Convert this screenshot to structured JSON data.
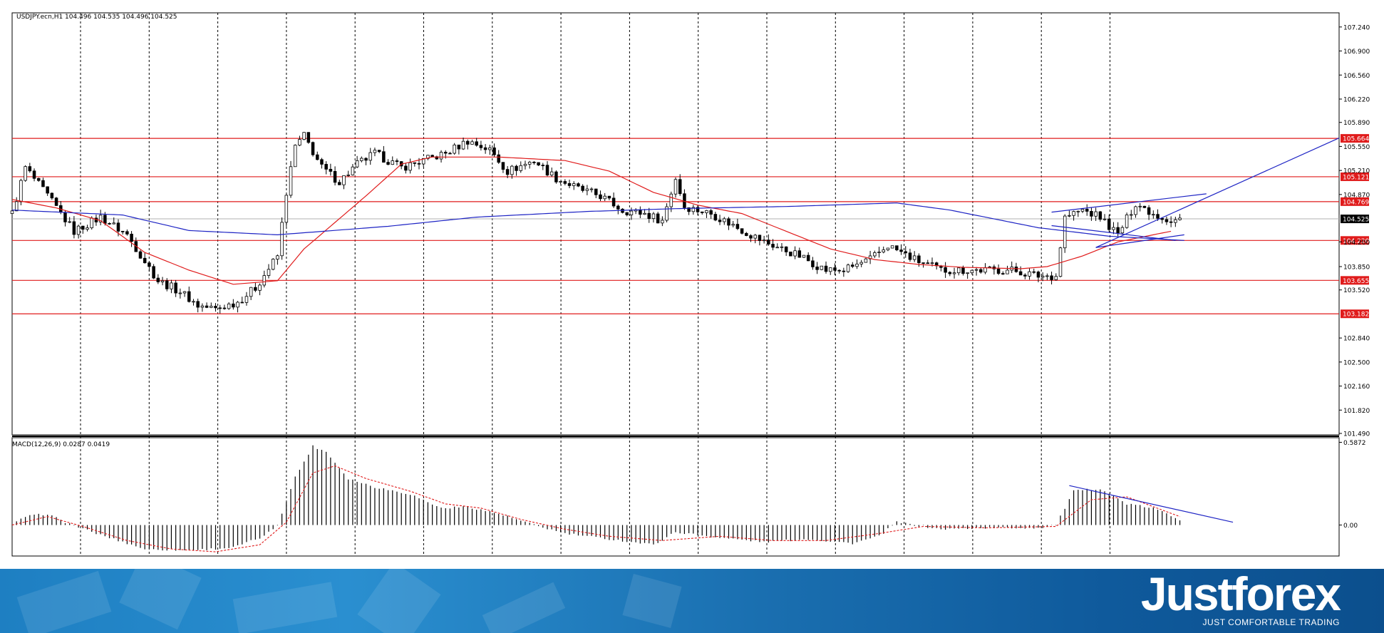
{
  "chart_data": [
    {
      "type": "line",
      "title": "USDJPY.ecn,H1  104.496 104.535 104.496 104.525",
      "price_ticks": [
        "107.240",
        "106.900",
        "106.560",
        "106.220",
        "105.890",
        "105.550",
        "105.210",
        "104.870",
        "104.200",
        "103.850",
        "103.520",
        "102.840",
        "102.500",
        "102.160",
        "101.820",
        "101.490"
      ],
      "ylim": [
        101.47,
        107.44
      ],
      "x_count": 300,
      "levels": [
        {
          "label": "105.664",
          "value": 105.664
        },
        {
          "label": "105.121",
          "value": 105.121
        },
        {
          "label": "104.769",
          "value": 104.769
        },
        {
          "label": "104.220",
          "value": 104.22
        },
        {
          "label": "103.655",
          "value": 103.655
        },
        {
          "label": "103.182",
          "value": 103.182
        }
      ],
      "current_price": {
        "label": "104.525",
        "value": 104.525
      },
      "price_keypoints": [
        [
          0,
          104.6
        ],
        [
          3,
          105.25
        ],
        [
          8,
          104.85
        ],
        [
          14,
          104.35
        ],
        [
          20,
          104.55
        ],
        [
          26,
          104.3
        ],
        [
          33,
          103.65
        ],
        [
          38,
          103.5
        ],
        [
          42,
          103.3
        ],
        [
          46,
          103.25
        ],
        [
          51,
          103.35
        ],
        [
          55,
          103.55
        ],
        [
          60,
          104.0
        ],
        [
          62,
          104.9
        ],
        [
          64,
          105.55
        ],
        [
          66,
          105.7
        ],
        [
          70,
          105.25
        ],
        [
          74,
          105.05
        ],
        [
          78,
          105.3
        ],
        [
          82,
          105.45
        ],
        [
          88,
          105.25
        ],
        [
          93,
          105.35
        ],
        [
          98,
          105.45
        ],
        [
          103,
          105.63
        ],
        [
          108,
          105.5
        ],
        [
          112,
          105.2
        ],
        [
          118,
          105.35
        ],
        [
          123,
          105.1
        ],
        [
          128,
          104.95
        ],
        [
          133,
          104.85
        ],
        [
          138,
          104.65
        ],
        [
          143,
          104.6
        ],
        [
          147,
          104.5
        ],
        [
          150,
          105.1
        ],
        [
          152,
          104.7
        ],
        [
          158,
          104.6
        ],
        [
          164,
          104.4
        ],
        [
          170,
          104.2
        ],
        [
          178,
          104.0
        ],
        [
          184,
          103.8
        ],
        [
          188,
          103.8
        ],
        [
          194,
          103.95
        ],
        [
          198,
          104.15
        ],
        [
          204,
          103.95
        ],
        [
          210,
          103.8
        ],
        [
          218,
          103.8
        ],
        [
          226,
          103.8
        ],
        [
          232,
          103.72
        ],
        [
          236,
          103.72
        ],
        [
          238,
          104.55
        ],
        [
          242,
          104.65
        ],
        [
          246,
          104.55
        ],
        [
          250,
          104.3
        ],
        [
          254,
          104.75
        ],
        [
          258,
          104.6
        ],
        [
          262,
          104.5
        ],
        [
          264,
          104.525
        ]
      ],
      "ma_fast_keypoints": [
        [
          0,
          104.8
        ],
        [
          10,
          104.68
        ],
        [
          20,
          104.5
        ],
        [
          30,
          104.05
        ],
        [
          40,
          103.8
        ],
        [
          50,
          103.6
        ],
        [
          60,
          103.65
        ],
        [
          66,
          104.1
        ],
        [
          80,
          104.85
        ],
        [
          88,
          105.3
        ],
        [
          95,
          105.4
        ],
        [
          110,
          105.4
        ],
        [
          125,
          105.35
        ],
        [
          135,
          105.2
        ],
        [
          145,
          104.9
        ],
        [
          155,
          104.72
        ],
        [
          165,
          104.6
        ],
        [
          175,
          104.35
        ],
        [
          185,
          104.1
        ],
        [
          195,
          103.95
        ],
        [
          205,
          103.88
        ],
        [
          215,
          103.84
        ],
        [
          228,
          103.82
        ],
        [
          234,
          103.85
        ],
        [
          242,
          104.0
        ],
        [
          250,
          104.2
        ],
        [
          262,
          104.35
        ]
      ],
      "ma_slow_keypoints": [
        [
          0,
          104.65
        ],
        [
          25,
          104.58
        ],
        [
          40,
          104.36
        ],
        [
          60,
          104.3
        ],
        [
          85,
          104.42
        ],
        [
          105,
          104.55
        ],
        [
          130,
          104.63
        ],
        [
          150,
          104.67
        ],
        [
          175,
          104.7
        ],
        [
          200,
          104.75
        ],
        [
          212,
          104.65
        ],
        [
          232,
          104.4
        ],
        [
          248,
          104.28
        ],
        [
          265,
          104.22
        ]
      ],
      "trendlines": [
        {
          "from": [
            235,
            104.62
          ],
          "to": [
            270,
            104.88
          ]
        },
        {
          "from": [
            235,
            104.43
          ],
          "to": [
            263,
            104.22
          ]
        },
        {
          "from": [
            245,
            104.12
          ],
          "to": [
            330,
            105.67
          ]
        },
        {
          "from": [
            245,
            104.12
          ],
          "to": [
            265,
            104.3
          ]
        }
      ]
    },
    {
      "type": "bar",
      "title": "MACD(12,26,9) 0.0287 0.0419",
      "y_ticks": [
        "0.5872",
        "0.00"
      ],
      "ylim": [
        -0.22,
        0.62
      ],
      "x_count": 300,
      "histogram_keypoints": [
        [
          0,
          0.0
        ],
        [
          3,
          0.06
        ],
        [
          8,
          0.08
        ],
        [
          12,
          0.02
        ],
        [
          18,
          -0.05
        ],
        [
          25,
          -0.12
        ],
        [
          30,
          -0.17
        ],
        [
          40,
          -0.18
        ],
        [
          50,
          -0.16
        ],
        [
          57,
          -0.08
        ],
        [
          60,
          0.0
        ],
        [
          64,
          0.34
        ],
        [
          68,
          0.56
        ],
        [
          71,
          0.52
        ],
        [
          76,
          0.33
        ],
        [
          82,
          0.27
        ],
        [
          90,
          0.22
        ],
        [
          97,
          0.12
        ],
        [
          103,
          0.13
        ],
        [
          110,
          0.08
        ],
        [
          118,
          0.0
        ],
        [
          125,
          -0.06
        ],
        [
          135,
          -0.1
        ],
        [
          145,
          -0.14
        ],
        [
          150,
          -0.05
        ],
        [
          160,
          -0.09
        ],
        [
          170,
          -0.12
        ],
        [
          180,
          -0.1
        ],
        [
          190,
          -0.13
        ],
        [
          196,
          -0.08
        ],
        [
          200,
          0.02
        ],
        [
          210,
          -0.03
        ],
        [
          220,
          -0.02
        ],
        [
          232,
          -0.02
        ],
        [
          236,
          0.0
        ],
        [
          240,
          0.24
        ],
        [
          246,
          0.26
        ],
        [
          252,
          0.15
        ],
        [
          258,
          0.12
        ],
        [
          264,
          0.04
        ]
      ],
      "signal_keypoints": [
        [
          0,
          0.0
        ],
        [
          8,
          0.06
        ],
        [
          16,
          -0.01
        ],
        [
          26,
          -0.11
        ],
        [
          36,
          -0.17
        ],
        [
          46,
          -0.19
        ],
        [
          56,
          -0.14
        ],
        [
          62,
          0.02
        ],
        [
          68,
          0.37
        ],
        [
          73,
          0.42
        ],
        [
          80,
          0.33
        ],
        [
          90,
          0.24
        ],
        [
          98,
          0.15
        ],
        [
          106,
          0.12
        ],
        [
          115,
          0.04
        ],
        [
          125,
          -0.03
        ],
        [
          135,
          -0.08
        ],
        [
          147,
          -0.11
        ],
        [
          160,
          -0.08
        ],
        [
          172,
          -0.11
        ],
        [
          184,
          -0.11
        ],
        [
          196,
          -0.06
        ],
        [
          206,
          -0.01
        ],
        [
          220,
          -0.02
        ],
        [
          236,
          -0.01
        ],
        [
          244,
          0.18
        ],
        [
          252,
          0.2
        ],
        [
          264,
          0.06
        ]
      ],
      "trendlines": [
        {
          "from": [
            239,
            0.28
          ],
          "to": [
            276,
            0.02
          ]
        }
      ]
    }
  ],
  "colors": {
    "levels": "#e01b1b",
    "ma_fast": "#e01b1b",
    "ma_slow": "#1d23c4",
    "trendline": "#1d23c4",
    "candles": "#000000",
    "macd_signal": "#e01b1b",
    "current_price_bg": "#000000"
  },
  "branding": {
    "logo": "Justforex",
    "tagline": "JUST COMFORTABLE TRADING"
  }
}
